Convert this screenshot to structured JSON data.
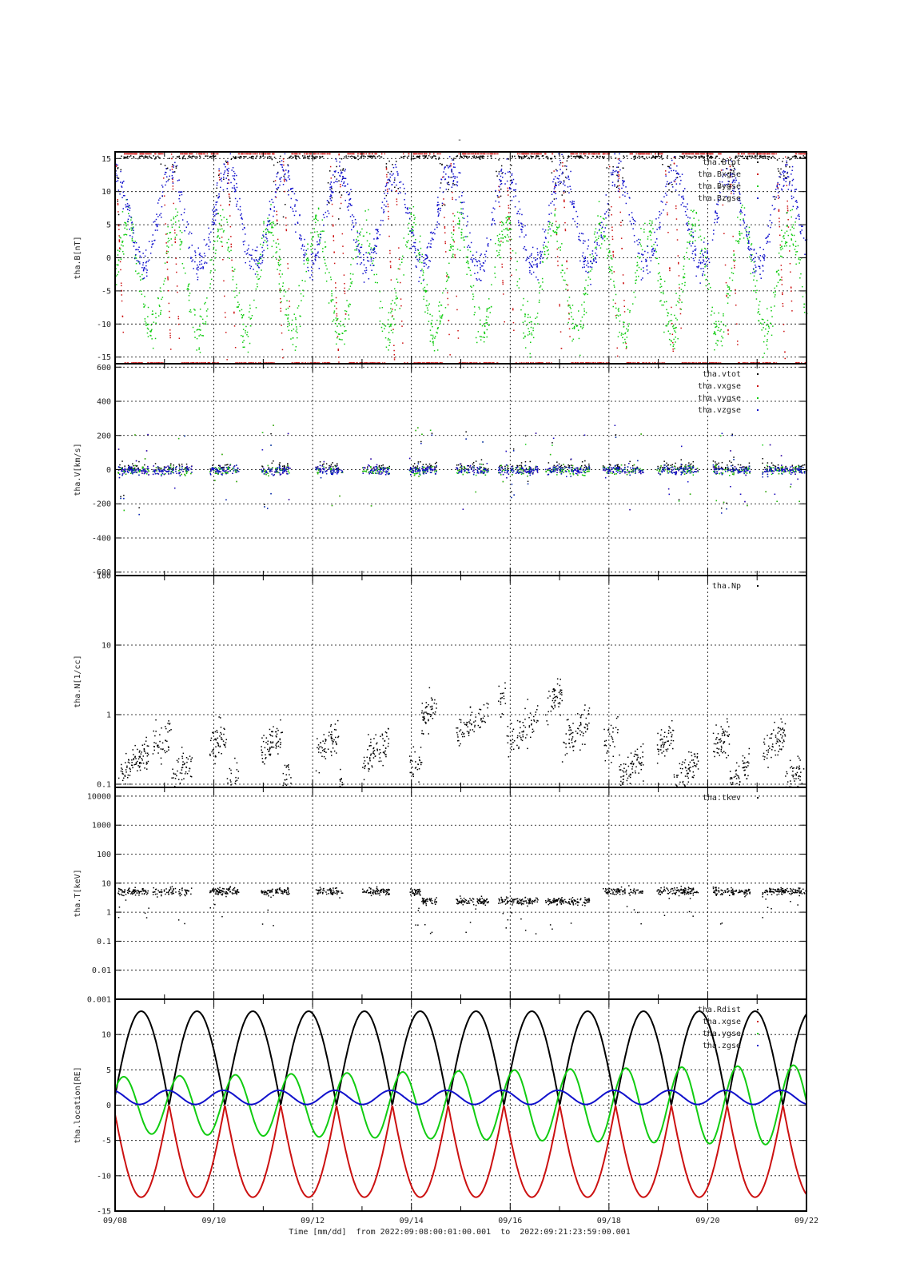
{
  "figure": {
    "top_mark": "-",
    "footer": "Time [mm/dd]  from 2022:09:08:00:01:00.001  to  2022:09:21:23:59:00.001"
  },
  "chart_data": [
    {
      "type": "scatter",
      "ylabel": "tha.B[nT]",
      "ylim": [
        -16,
        16
      ],
      "yscale": "linear",
      "yticks": [
        -15,
        -10,
        -5,
        0,
        5,
        10,
        15
      ],
      "ytick_labels": [
        "-15",
        "-10",
        "-5",
        "0",
        "5",
        "10",
        "15"
      ],
      "xlim_days": [
        0,
        14
      ],
      "legend_position": "top-right",
      "grid": true,
      "series": [
        {
          "name": "tha.Btot",
          "color": "#000000",
          "kind": "bfield_tot"
        },
        {
          "name": "tha.Bxgse",
          "color": "#cc1111",
          "kind": "bfield_x"
        },
        {
          "name": "tha.Bygse",
          "color": "#11cc11",
          "kind": "bfield_y"
        },
        {
          "name": "tha.Bzgse",
          "color": "#1111cc",
          "kind": "bfield_z"
        }
      ]
    },
    {
      "type": "scatter",
      "ylabel": "tha.V[km/s]",
      "ylim": [
        -620,
        620
      ],
      "yscale": "linear",
      "yticks": [
        -600,
        -400,
        -200,
        0,
        200,
        400,
        600
      ],
      "ytick_labels": [
        "-600",
        "-400",
        "-200",
        "0",
        "200",
        "400",
        "600"
      ],
      "xlim_days": [
        0,
        14
      ],
      "legend_position": "top-right",
      "grid": true,
      "series": [
        {
          "name": "tha.vtot",
          "color": "#000000",
          "kind": "vel_tot"
        },
        {
          "name": "tha.vxgse",
          "color": "#cc1111",
          "kind": "vel_comp"
        },
        {
          "name": "tha.vygse",
          "color": "#11cc11",
          "kind": "vel_comp"
        },
        {
          "name": "tha.vzgse",
          "color": "#1111cc",
          "kind": "vel_comp"
        }
      ]
    },
    {
      "type": "scatter",
      "ylabel": "tha.N[1/cc]",
      "ylim": [
        0.09,
        100
      ],
      "yscale": "log",
      "yticks": [
        0.1,
        1,
        10,
        100
      ],
      "ytick_labels": [
        "0.1",
        "1",
        "10",
        "100"
      ],
      "xlim_days": [
        0,
        14
      ],
      "legend_position": "top-right",
      "grid": true,
      "series": [
        {
          "name": "tha.Np",
          "color": "#000000",
          "kind": "density"
        }
      ]
    },
    {
      "type": "scatter",
      "ylabel": "tha.T[keV]",
      "ylim": [
        0.001,
        20000
      ],
      "yscale": "log",
      "yticks": [
        0.001,
        0.01,
        0.1,
        1,
        10,
        100,
        1000,
        10000
      ],
      "ytick_labels": [
        "0.001",
        "0.01",
        "0.1",
        "1",
        "10",
        "100",
        "1000",
        "10000"
      ],
      "xlim_days": [
        0,
        14
      ],
      "legend_position": "top-right",
      "grid": true,
      "series": [
        {
          "name": "tha.tkev",
          "color": "#000000",
          "kind": "temperature"
        }
      ]
    },
    {
      "type": "line",
      "ylabel": "tha.location[RE]",
      "ylim": [
        -15,
        15
      ],
      "yscale": "linear",
      "yticks": [
        -15,
        -10,
        -5,
        0,
        5,
        10
      ],
      "ytick_labels": [
        "-15",
        "-10",
        "-5",
        "0",
        "5",
        "10"
      ],
      "xlim_days": [
        0,
        14
      ],
      "legend_position": "top-right",
      "grid": true,
      "orbit_period_days": 1.13,
      "orbit_apogee_RE": 13.3,
      "series": [
        {
          "name": "tha.Rdist",
          "color": "#000000",
          "kind": "rdist"
        },
        {
          "name": "tha.xgse",
          "color": "#cc1111",
          "kind": "xgse"
        },
        {
          "name": "tha.ygse",
          "color": "#11cc11",
          "kind": "ygse"
        },
        {
          "name": "tha.zgse",
          "color": "#1111cc",
          "kind": "zgse"
        }
      ]
    }
  ],
  "x_axis": {
    "label": "Time [mm/dd]",
    "tick_labels": [
      "09/08",
      "09/10",
      "09/12",
      "09/14",
      "09/16",
      "09/18",
      "09/20",
      "09/22"
    ],
    "tick_days": [
      0,
      2,
      4,
      6,
      8,
      10,
      12,
      14
    ]
  }
}
